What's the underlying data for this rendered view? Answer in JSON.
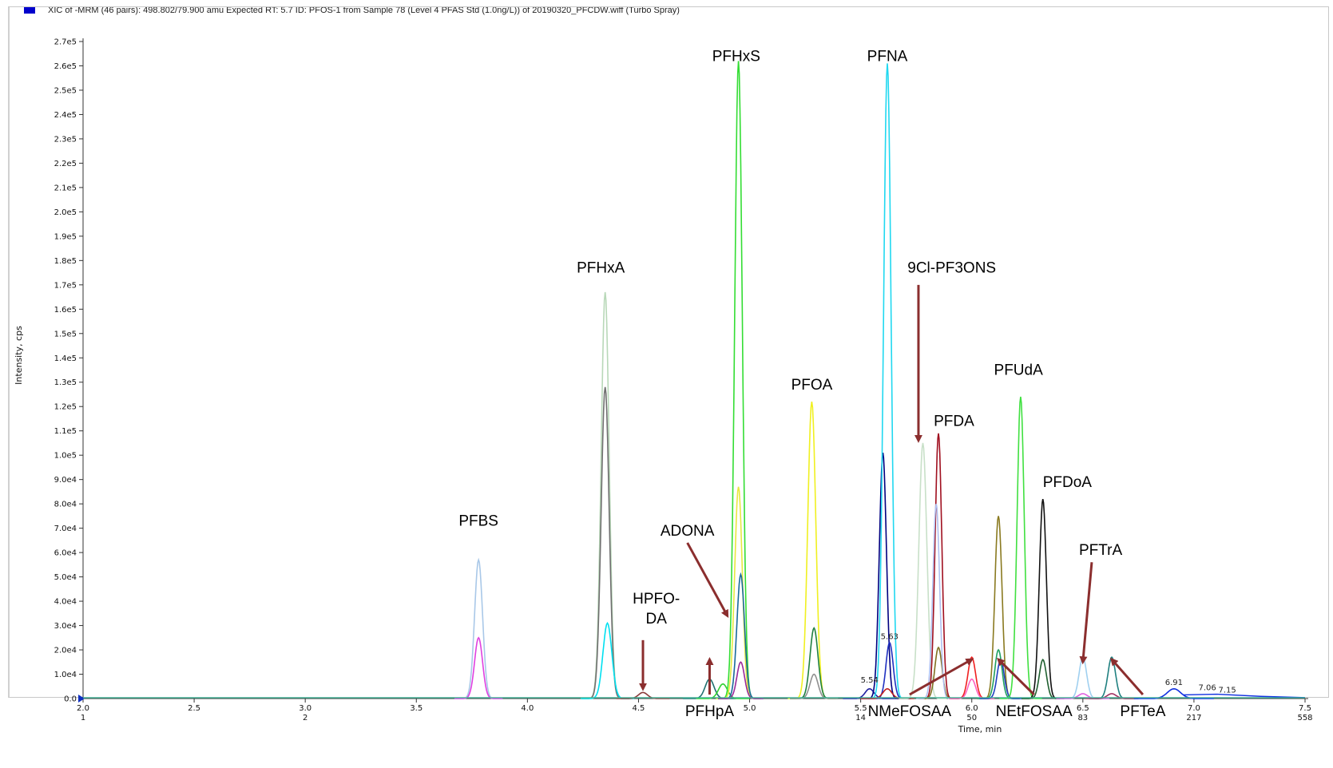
{
  "chart_data": {
    "type": "line",
    "title": "XIC of -MRM (46 pairs): 498.802/79.900 amu Expected RT: 5.7 ID: PFOS-1 from Sample 78 (Level 4 PFAS Std (1.0ng/L)) of 20190320_PFCDW.wiff (Turbo Spray)",
    "xlabel": "Time, min",
    "ylabel": "Intensity, cps",
    "xlim": [
      2.0,
      7.5
    ],
    "ylim": [
      0,
      270000
    ],
    "legend_color": "#0000cc",
    "x_ticks": [
      "2.0",
      "2.5",
      "3.0",
      "3.5",
      "4.0",
      "4.5",
      "5.0",
      "5.5",
      "6.0",
      "6.5",
      "7.0",
      "7.5"
    ],
    "x_tick_values": [
      2.0,
      2.5,
      3.0,
      3.5,
      4.0,
      4.5,
      5.0,
      5.5,
      6.0,
      6.5,
      7.0,
      7.5
    ],
    "scan_labels": [
      {
        "x": 2.0,
        "text": "1"
      },
      {
        "x": 3.0,
        "text": "2"
      },
      {
        "x": 5.5,
        "text": "14"
      },
      {
        "x": 6.0,
        "text": "50"
      },
      {
        "x": 6.5,
        "text": "83"
      },
      {
        "x": 7.0,
        "text": "217"
      },
      {
        "x": 7.5,
        "text": "558"
      }
    ],
    "y_ticks": [
      {
        "v": 0,
        "t": "0.0"
      },
      {
        "v": 10000,
        "t": "1.0e4"
      },
      {
        "v": 20000,
        "t": "2.0e4"
      },
      {
        "v": 30000,
        "t": "3.0e4"
      },
      {
        "v": 40000,
        "t": "4.0e4"
      },
      {
        "v": 50000,
        "t": "5.0e4"
      },
      {
        "v": 60000,
        "t": "6.0e4"
      },
      {
        "v": 70000,
        "t": "7.0e4"
      },
      {
        "v": 80000,
        "t": "8.0e4"
      },
      {
        "v": 90000,
        "t": "9.0e4"
      },
      {
        "v": 100000,
        "t": "1.0e5"
      },
      {
        "v": 110000,
        "t": "1.1e5"
      },
      {
        "v": 120000,
        "t": "1.2e5"
      },
      {
        "v": 130000,
        "t": "1.3e5"
      },
      {
        "v": 140000,
        "t": "1.4e5"
      },
      {
        "v": 150000,
        "t": "1.5e5"
      },
      {
        "v": 160000,
        "t": "1.6e5"
      },
      {
        "v": 170000,
        "t": "1.7e5"
      },
      {
        "v": 180000,
        "t": "1.8e5"
      },
      {
        "v": 190000,
        "t": "1.9e5"
      },
      {
        "v": 200000,
        "t": "2.0e5"
      },
      {
        "v": 210000,
        "t": "2.1e5"
      },
      {
        "v": 220000,
        "t": "2.2e5"
      },
      {
        "v": 230000,
        "t": "2.3e5"
      },
      {
        "v": 240000,
        "t": "2.4e5"
      },
      {
        "v": 250000,
        "t": "2.5e5"
      },
      {
        "v": 260000,
        "t": "2.6e5"
      },
      {
        "v": 270000,
        "t": "2.7e5"
      }
    ],
    "peaks": [
      {
        "rt": 3.78,
        "h": 57000,
        "w": 0.018,
        "color": "#a9c8e8"
      },
      {
        "rt": 3.78,
        "h": 25000,
        "w": 0.018,
        "color": "#e040e0"
      },
      {
        "rt": 4.35,
        "h": 167000,
        "w": 0.018,
        "color": "#b8d8b8"
      },
      {
        "rt": 4.35,
        "h": 128000,
        "w": 0.018,
        "color": "#707070"
      },
      {
        "rt": 4.36,
        "h": 31000,
        "w": 0.02,
        "color": "#00e0f0"
      },
      {
        "rt": 4.52,
        "h": 2500,
        "w": 0.02,
        "color": "#8b3a3a"
      },
      {
        "rt": 4.82,
        "h": 8000,
        "w": 0.02,
        "color": "#207070"
      },
      {
        "rt": 4.88,
        "h": 6000,
        "w": 0.02,
        "color": "#30d030"
      },
      {
        "rt": 4.95,
        "h": 262000,
        "w": 0.017,
        "color": "#33dd33"
      },
      {
        "rt": 4.95,
        "h": 87000,
        "w": 0.017,
        "color": "#e8e840"
      },
      {
        "rt": 4.96,
        "h": 51000,
        "w": 0.017,
        "color": "#1a6a9a"
      },
      {
        "rt": 4.96,
        "h": 15000,
        "w": 0.017,
        "color": "#9a2a9a"
      },
      {
        "rt": 5.28,
        "h": 122000,
        "w": 0.018,
        "color": "#f0f020"
      },
      {
        "rt": 5.29,
        "h": 29000,
        "w": 0.018,
        "color": "#208040"
      },
      {
        "rt": 5.29,
        "h": 10000,
        "w": 0.018,
        "color": "#909090"
      },
      {
        "rt": 5.54,
        "h": 4000,
        "w": 0.02,
        "color": "#2020a0"
      },
      {
        "rt": 5.6,
        "h": 101000,
        "w": 0.016,
        "color": "#000080"
      },
      {
        "rt": 5.62,
        "h": 261000,
        "w": 0.017,
        "color": "#20d8f0"
      },
      {
        "rt": 5.63,
        "h": 23000,
        "w": 0.016,
        "color": "#2030c0"
      },
      {
        "rt": 5.62,
        "h": 4000,
        "w": 0.02,
        "color": "#c02020"
      },
      {
        "rt": 5.78,
        "h": 105000,
        "w": 0.018,
        "color": "#c8e0c8"
      },
      {
        "rt": 5.85,
        "h": 109000,
        "w": 0.015,
        "color": "#a01020"
      },
      {
        "rt": 5.85,
        "h": 21000,
        "w": 0.016,
        "color": "#807020"
      },
      {
        "rt": 5.84,
        "h": 80000,
        "w": 0.015,
        "color": "#b0c0f0"
      },
      {
        "rt": 6.0,
        "h": 17000,
        "w": 0.017,
        "color": "#f02020"
      },
      {
        "rt": 6.0,
        "h": 8000,
        "w": 0.017,
        "color": "#ff60c0"
      },
      {
        "rt": 6.12,
        "h": 75000,
        "w": 0.016,
        "color": "#8a7a20"
      },
      {
        "rt": 6.12,
        "h": 20000,
        "w": 0.016,
        "color": "#20a060"
      },
      {
        "rt": 6.13,
        "h": 16000,
        "w": 0.016,
        "color": "#2040c0"
      },
      {
        "rt": 6.22,
        "h": 124000,
        "w": 0.016,
        "color": "#40e040"
      },
      {
        "rt": 6.32,
        "h": 82000,
        "w": 0.016,
        "color": "#111111"
      },
      {
        "rt": 6.32,
        "h": 16000,
        "w": 0.016,
        "color": "#206030"
      },
      {
        "rt": 6.5,
        "h": 17000,
        "w": 0.017,
        "color": "#a0d0f0"
      },
      {
        "rt": 6.5,
        "h": 2000,
        "w": 0.02,
        "color": "#e060e0"
      },
      {
        "rt": 6.63,
        "h": 17000,
        "w": 0.017,
        "color": "#208080"
      },
      {
        "rt": 6.63,
        "h": 2000,
        "w": 0.02,
        "color": "#a03060"
      },
      {
        "rt": 6.91,
        "h": 4000,
        "w": 0.03,
        "color": "#1030e0"
      }
    ],
    "rt_labels": [
      {
        "x": 5.54,
        "y": 6500,
        "text": "5.54"
      },
      {
        "x": 5.63,
        "y": 24500,
        "text": "5.63"
      },
      {
        "x": 6.91,
        "y": 5500,
        "text": "6.91"
      },
      {
        "x": 7.06,
        "y": 3500,
        "text": "7.06"
      },
      {
        "x": 7.15,
        "y": 2500,
        "text": "7.15"
      }
    ],
    "annotations": [
      {
        "name": "PFBS",
        "lines": [
          "PFBS"
        ],
        "x": 3.78,
        "y": 71000,
        "arrow": null
      },
      {
        "name": "PFHxA",
        "lines": [
          "PFHxA"
        ],
        "x": 4.33,
        "y": 175000,
        "arrow": null
      },
      {
        "name": "HPFO-DA",
        "lines": [
          "HPFO-",
          "DA"
        ],
        "x": 4.58,
        "y": 39000,
        "arrow": {
          "x1": 4.52,
          "y1": 24000,
          "x2": 4.52,
          "y2": 4000
        }
      },
      {
        "name": "ADONA",
        "lines": [
          "ADONA"
        ],
        "x": 4.72,
        "y": 67000,
        "arrow": {
          "x1": 4.72,
          "y1": 64000,
          "x2": 4.9,
          "y2": 34000
        }
      },
      {
        "name": "PFHxS",
        "lines": [
          "PFHxS"
        ],
        "x": 4.94,
        "y": 262000,
        "arrow": null
      },
      {
        "name": "PFNA",
        "lines": [
          "PFNA"
        ],
        "x": 5.62,
        "y": 262000,
        "arrow": null
      },
      {
        "name": "PFOA",
        "lines": [
          "PFOA"
        ],
        "x": 5.28,
        "y": 127000,
        "arrow": null
      },
      {
        "name": "9Cl-PF3ONS",
        "lines": [
          "9Cl-PF3ONS"
        ],
        "x": 5.91,
        "y": 175000,
        "arrow": {
          "x1": 5.76,
          "y1": 170000,
          "x2": 5.76,
          "y2": 106000
        }
      },
      {
        "name": "PFDA",
        "lines": [
          "PFDA"
        ],
        "x": 5.92,
        "y": 112000,
        "arrow": null
      },
      {
        "name": "PFUdA",
        "lines": [
          "PFUdA"
        ],
        "x": 6.21,
        "y": 133000,
        "arrow": null
      },
      {
        "name": "PFDoA",
        "lines": [
          "PFDoA"
        ],
        "x": 6.43,
        "y": 87000,
        "arrow": null
      },
      {
        "name": "PFTrA",
        "lines": [
          "PFTrA"
        ],
        "x": 6.58,
        "y": 59000,
        "arrow": {
          "x1": 6.54,
          "y1": 56000,
          "x2": 6.5,
          "y2": 15000
        }
      }
    ],
    "below_annotations": [
      {
        "name": "PFHpA",
        "text": "PFHpA",
        "x": 4.82,
        "arrow": {
          "x1": 4.82,
          "x2": 4.82
        }
      },
      {
        "name": "NMeFOSAA",
        "text": "NMeFOSAA",
        "x": 5.72,
        "arrow": {
          "x1": 5.72,
          "x2": 6.0
        }
      },
      {
        "name": "NEtFOSAA",
        "text": "NEtFOSAA",
        "x": 6.28,
        "arrow": {
          "x1": 6.28,
          "x2": 6.12
        }
      },
      {
        "name": "PFTeA",
        "text": "PFTeA",
        "x": 6.77,
        "arrow": {
          "x1": 6.77,
          "x2": 6.63
        }
      }
    ]
  }
}
